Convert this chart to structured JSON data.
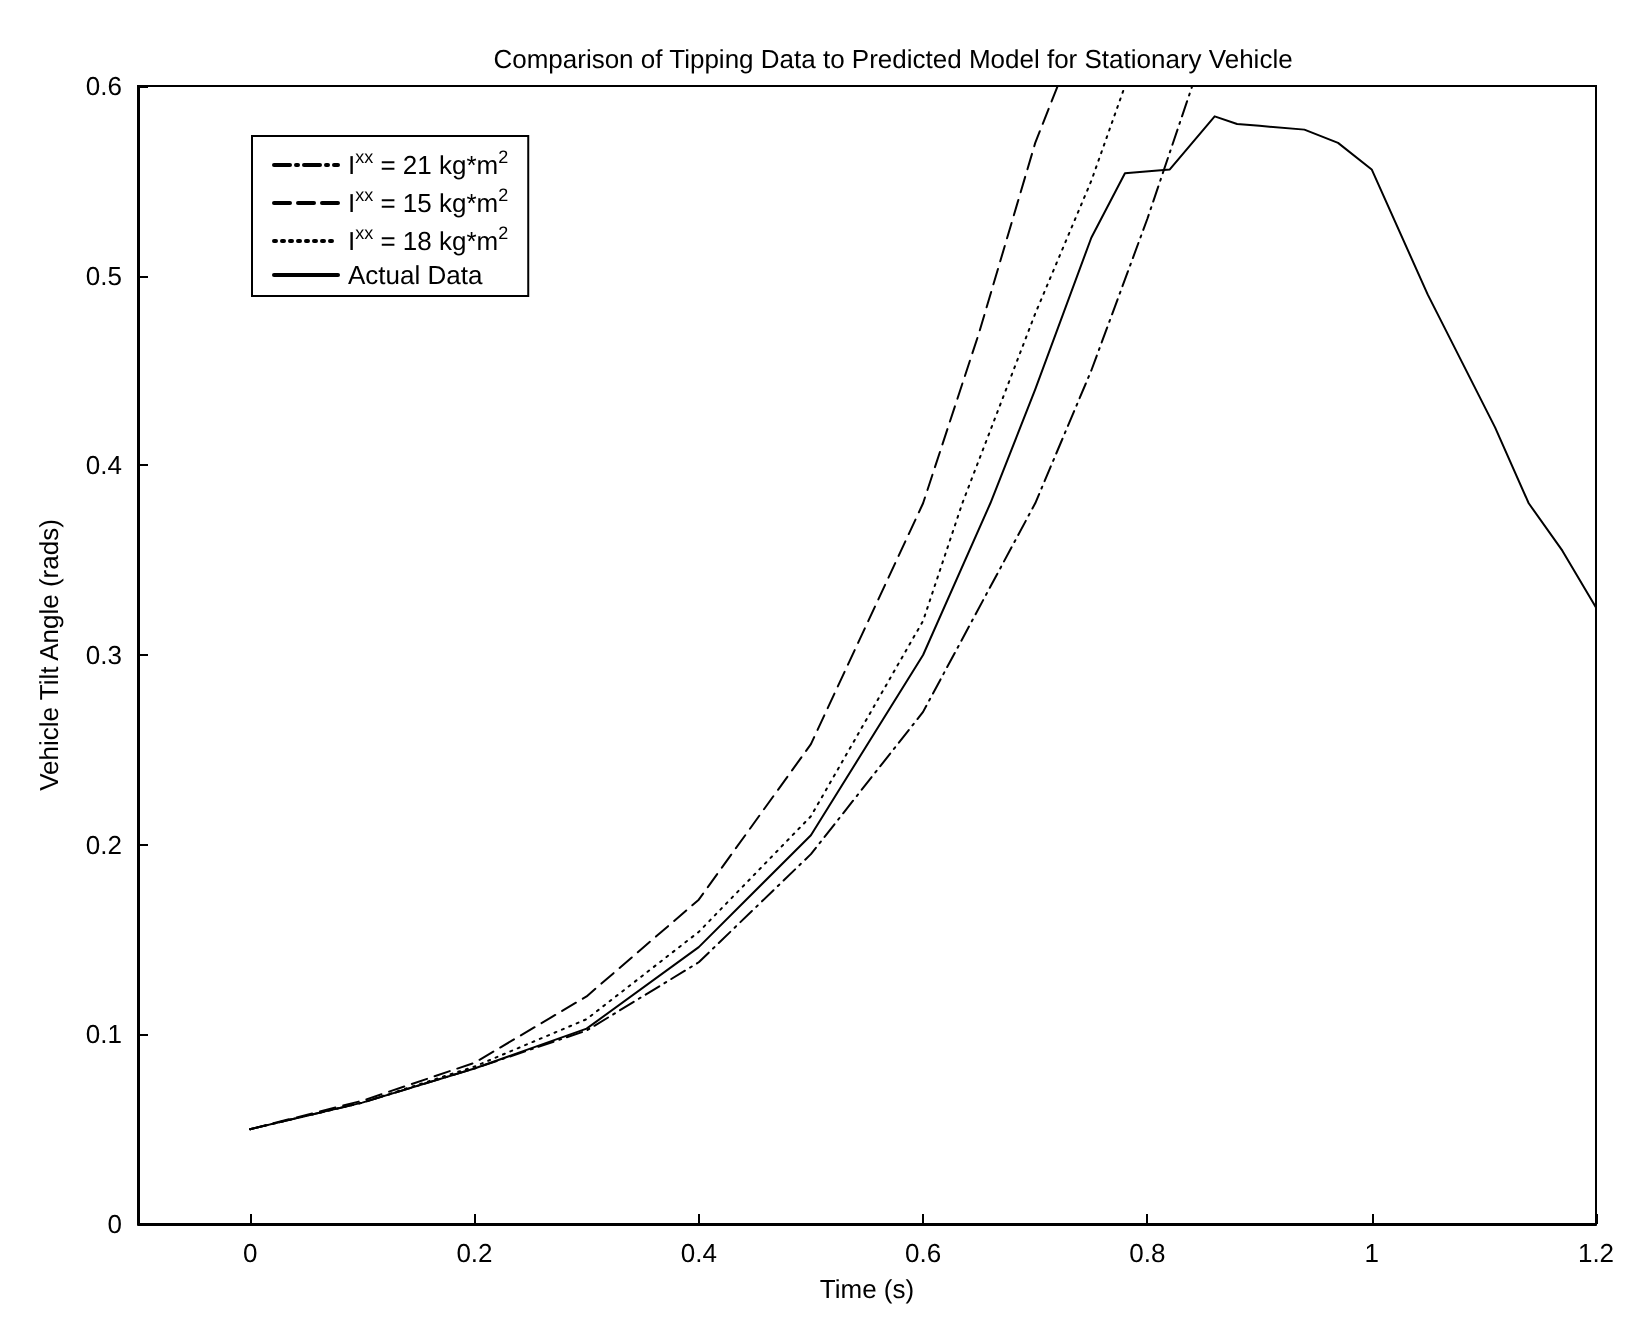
{
  "chart_data": {
    "type": "line",
    "title": "Comparison of Tipping Data to Predicted Model for Stationary Vehicle",
    "xlabel": "Time (s)",
    "ylabel": "Vehicle Tilt Angle (rads)",
    "xlim": [
      -0.1,
      1.2
    ],
    "xticks": [
      0,
      0.2,
      0.4,
      0.6,
      0.8,
      1,
      1.2
    ],
    "ylim": [
      0,
      0.6
    ],
    "yticks": [
      0,
      0.1,
      0.2,
      0.3,
      0.4,
      0.5,
      0.6
    ],
    "grid": false,
    "legend": "top left",
    "marker": "none",
    "series": [
      {
        "name": "I$^{xx}$ = 21 kg*m$^{2}$",
        "color": "#000000",
        "line_style": "dashdot",
        "x": [
          0,
          0.1,
          0.2,
          0.3,
          0.4,
          0.5,
          0.6,
          0.7,
          0.75,
          0.8,
          0.84
        ],
        "values": [
          0.05,
          0.064,
          0.082,
          0.102,
          0.138,
          0.195,
          0.27,
          0.38,
          0.45,
          0.53,
          0.6
        ]
      },
      {
        "name": "I$^{xx}$ = 15 kg*m$^{2}$",
        "color": "#000000",
        "line_style": "dashed",
        "x": [
          0,
          0.1,
          0.2,
          0.3,
          0.4,
          0.5,
          0.6,
          0.65,
          0.7,
          0.72
        ],
        "values": [
          0.05,
          0.065,
          0.085,
          0.12,
          0.171,
          0.253,
          0.38,
          0.47,
          0.57,
          0.6
        ]
      },
      {
        "name": "I$^{xx}$ = 18 kg*m$^{2}$",
        "color": "#000000",
        "line_style": "dotted",
        "x": [
          0,
          0.1,
          0.2,
          0.3,
          0.4,
          0.5,
          0.6,
          0.635,
          0.7,
          0.75,
          0.78
        ],
        "values": [
          0.05,
          0.064,
          0.083,
          0.108,
          0.154,
          0.215,
          0.318,
          0.38,
          0.48,
          0.55,
          0.6
        ]
      },
      {
        "name": "Actual Data",
        "color": "#000000",
        "line_style": "solid",
        "x": [
          0,
          0.1,
          0.2,
          0.3,
          0.4,
          0.5,
          0.6,
          0.66,
          0.7,
          0.75,
          0.78,
          0.82,
          0.84,
          0.86,
          0.88,
          0.9,
          0.94,
          0.97,
          1.0,
          1.05,
          1.11,
          1.14,
          1.17,
          1.2
        ],
        "values": [
          0.05,
          0.064,
          0.082,
          0.103,
          0.146,
          0.205,
          0.3,
          0.38,
          0.44,
          0.52,
          0.554,
          0.556,
          0.57,
          0.584,
          0.58,
          0.579,
          0.577,
          0.57,
          0.556,
          0.49,
          0.42,
          0.38,
          0.355,
          0.325
        ]
      }
    ]
  }
}
